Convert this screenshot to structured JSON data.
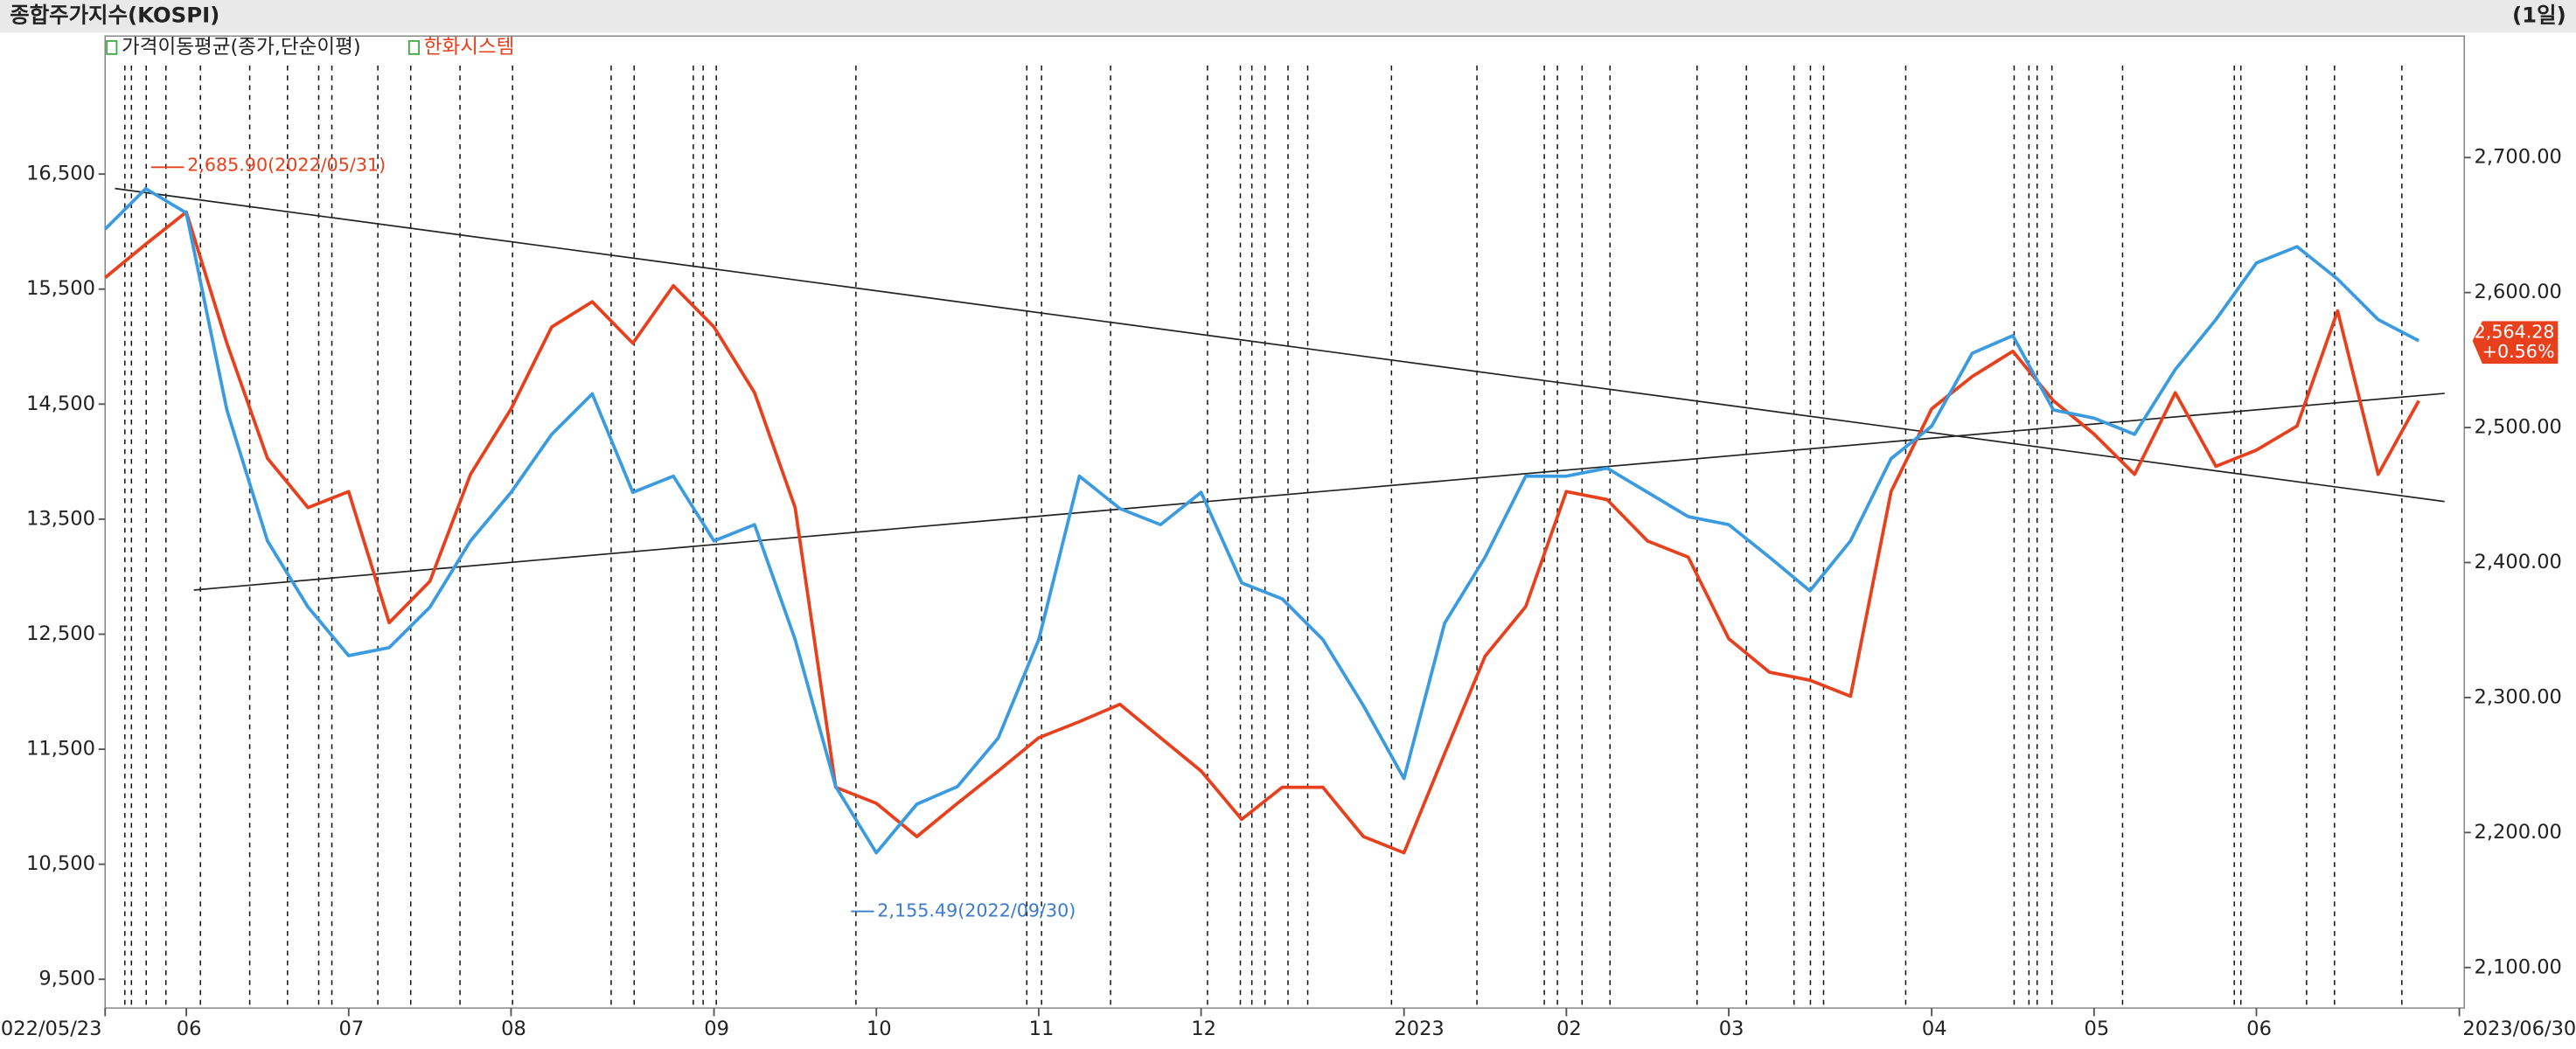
{
  "chart_data": {
    "type": "line",
    "title": "종합주가지수(KOSPI)",
    "period": "(1일)",
    "legend": [
      "가격이동평균(종가,단순이평)",
      "한화시스템"
    ],
    "categories": [
      "2022/05/23",
      null,
      "06",
      null,
      null,
      null,
      "07",
      null,
      null,
      null,
      "08",
      null,
      null,
      null,
      null,
      "09",
      null,
      null,
      null,
      "10",
      null,
      null,
      null,
      "11",
      null,
      null,
      null,
      "12",
      null,
      null,
      null,
      null,
      "2023",
      null,
      null,
      null,
      "02",
      null,
      null,
      null,
      "03",
      null,
      null,
      null,
      null,
      "04",
      null,
      null,
      null,
      "05",
      null,
      null,
      null,
      "06",
      null,
      null,
      null,
      null,
      "2023/06/30"
    ],
    "series": [
      {
        "name": "한화시스템",
        "color": "#e8401c",
        "axis": "y",
        "values": [
          15600,
          15890,
          16170,
          15030,
          14030,
          13600,
          13740,
          12600,
          12960,
          13890,
          14460,
          15170,
          15390,
          15030,
          15530,
          15170,
          14600,
          13600,
          11170,
          11030,
          10740,
          11030,
          11310,
          11600,
          11740,
          11890,
          11600,
          11310,
          10890,
          11170,
          11170,
          10740,
          10600,
          11460,
          12310,
          12740,
          13740,
          13670,
          13310,
          13170,
          12460,
          12170,
          12100,
          11960,
          13740,
          14460,
          14740,
          14960,
          14530,
          14240,
          13890,
          14600,
          13960,
          14100,
          14310,
          15310,
          13890,
          14530,
          null
        ]
      },
      {
        "color": "#3a9be0",
        "axis": "y2",
        "values": [
          2647,
          2677,
          2659,
          2513,
          2416,
          2367,
          2331,
          2337,
          2367,
          2416,
          2452,
          2495,
          2525,
          2452,
          2464,
          2416,
          2428,
          2343,
          2234,
          2185,
          2221,
          2234,
          2270,
          2343,
          2464,
          2440,
          2428,
          2452,
          2385,
          2373,
          2343,
          2294,
          2240,
          2355,
          2404,
          2464,
          2464,
          2470,
          2452,
          2434,
          2428,
          2404,
          2379,
          2416,
          2477,
          2501,
          2555,
          2568,
          2513,
          2507,
          2495,
          2543,
          2580,
          2622,
          2634,
          2610,
          2580,
          2564.28,
          null
        ]
      }
    ],
    "ylim": [
      9250,
      17700
    ],
    "yticks": [
      {
        "value": 9500,
        "label": "9,500"
      },
      {
        "value": 10500,
        "label": "10,500"
      },
      {
        "value": 11500,
        "label": "11,500"
      },
      {
        "value": 12500,
        "label": "12,500"
      },
      {
        "value": 13500,
        "label": "13,500"
      },
      {
        "value": 14500,
        "label": "14,500"
      },
      {
        "value": 15500,
        "label": "15,500"
      },
      {
        "value": 16500,
        "label": "16,500"
      }
    ],
    "y2lim": [
      2070,
      2790
    ],
    "y2ticks": [
      {
        "value": 2100,
        "label": "2,100.00"
      },
      {
        "value": 2200,
        "label": "2,200.00"
      },
      {
        "value": 2300,
        "label": "2,300.00"
      },
      {
        "value": 2400,
        "label": "2,400.00"
      },
      {
        "value": 2500,
        "label": "2,500.00"
      },
      {
        "value": 2600,
        "label": "2,600.00"
      },
      {
        "value": 2700,
        "label": "2,700.00"
      }
    ],
    "annotations": [
      "2,685.90(2022/05/31)",
      "2,155.49(2022/09/30)"
    ],
    "current_value": {
      "value": 2564.28,
      "label": "2,564.28"
    },
    "change": "+0.56%"
  }
}
